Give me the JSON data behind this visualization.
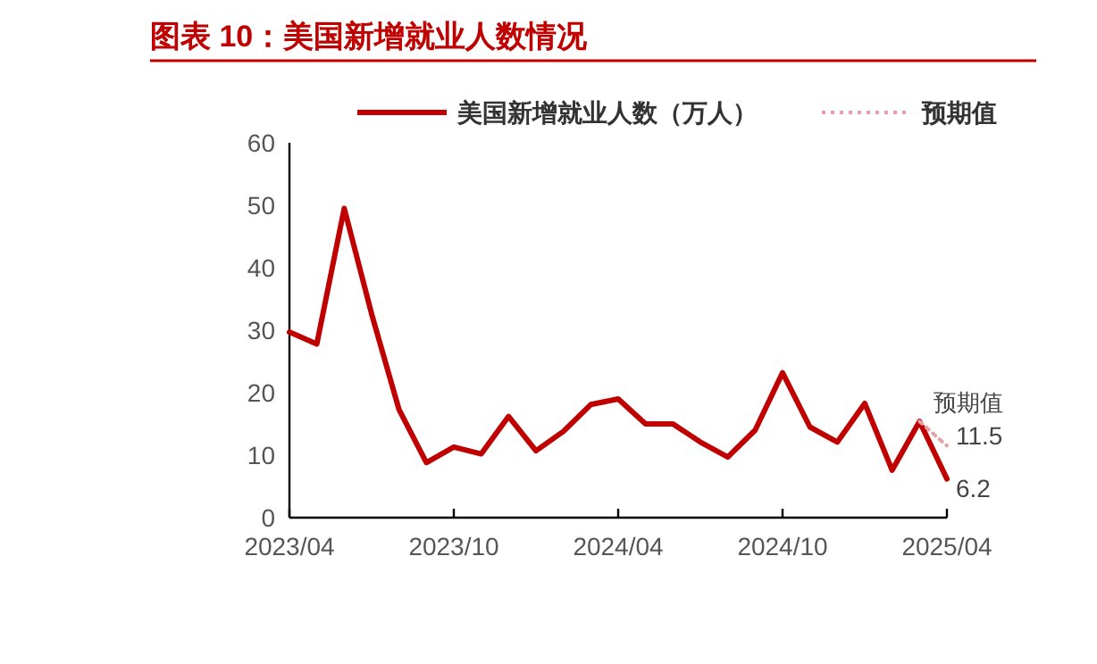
{
  "chart_data": {
    "type": "line",
    "title": "图表 10：美国新增就业人数情况",
    "xlim": [
      "2023-04",
      "2025-04"
    ],
    "xticks": [
      {
        "value": "2023-04",
        "label": "2023/04"
      },
      {
        "value": "2023-10",
        "label": "2023/10"
      },
      {
        "value": "2024-04",
        "label": "2024/04"
      },
      {
        "value": "2024-10",
        "label": "2024/10"
      },
      {
        "value": "2025-04",
        "label": "2025/04"
      }
    ],
    "ylim": [
      0,
      60
    ],
    "yticks": [
      0,
      10,
      20,
      30,
      40,
      50,
      60
    ],
    "legend": "top",
    "series": [
      {
        "name": "美国新增就业人数（万人）",
        "color": "#c00000",
        "line_style": "solid",
        "x": [
          "2023-04",
          "2023-05",
          "2023-06",
          "2023-07",
          "2023-08",
          "2023-09",
          "2023-10",
          "2023-11",
          "2023-12",
          "2024-01",
          "2024-02",
          "2024-03",
          "2024-04",
          "2024-05",
          "2024-06",
          "2024-07",
          "2024-08",
          "2024-09",
          "2024-10",
          "2024-11",
          "2024-12",
          "2025-01",
          "2025-02",
          "2025-03",
          "2025-04"
        ],
        "values": [
          29.7,
          27.8,
          49.5,
          32.6,
          17.3,
          8.8,
          11.3,
          10.2,
          16.2,
          10.7,
          13.8,
          18.1,
          19.0,
          15.0,
          15.0,
          12.1,
          9.7,
          14.0,
          23.2,
          14.5,
          12.1,
          18.3,
          7.6,
          15.4,
          6.2
        ],
        "value_labels": [
          null,
          null,
          null,
          null,
          null,
          null,
          null,
          null,
          null,
          null,
          null,
          null,
          null,
          null,
          null,
          null,
          null,
          null,
          null,
          null,
          null,
          null,
          null,
          null,
          "6.2"
        ]
      },
      {
        "name": "预期值",
        "color": "#e8a0a8",
        "line_style": "dotted",
        "x": [
          "2025-03",
          "2025-04"
        ],
        "values": [
          15.4,
          11.5
        ],
        "value_labels": [
          null,
          "11.5"
        ]
      }
    ],
    "annotations": [
      {
        "text": "预期值",
        "x": "2025-04",
        "y": 11.5
      }
    ]
  }
}
